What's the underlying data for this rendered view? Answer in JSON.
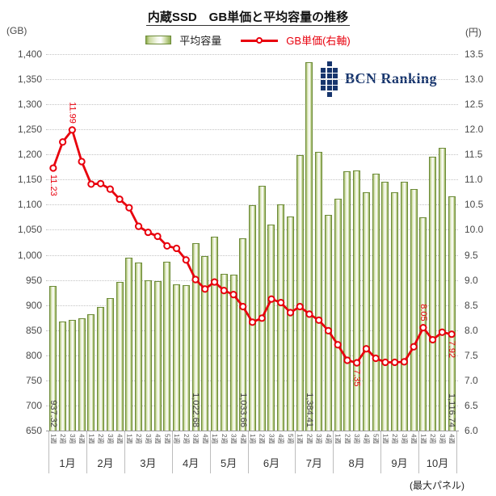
{
  "title": "内蔵SSD　GB単価と平均容量の推移",
  "legend": {
    "bar_label": "平均容量",
    "line_label": "GB単価(右軸)"
  },
  "left_axis": {
    "unit": "(GB)",
    "min": 650,
    "max": 1400,
    "step": 50
  },
  "right_axis": {
    "unit": "(円)",
    "min": 6.0,
    "max": 13.5,
    "step": 0.5
  },
  "footer_note": "(最大パネル)",
  "logo": {
    "text": "BCN Ranking",
    "color": "#17356d",
    "pattern": [
      "010",
      "111",
      "111",
      "111",
      "111",
      "010"
    ]
  },
  "colors": {
    "bar_border": "#6d8b39",
    "bar_mid": "#9bb95a",
    "line": "#e8000d",
    "grid": "#c4c4c4",
    "label": "#3f3f3f"
  },
  "chart_data": {
    "type": "bar+line",
    "months": [
      {
        "label": "1月",
        "weeks": 4
      },
      {
        "label": "2月",
        "weeks": 4
      },
      {
        "label": "3月",
        "weeks": 5
      },
      {
        "label": "4月",
        "weeks": 4
      },
      {
        "label": "5月",
        "weeks": 4
      },
      {
        "label": "6月",
        "weeks": 5
      },
      {
        "label": "7月",
        "weeks": 4
      },
      {
        "label": "8月",
        "weeks": 5
      },
      {
        "label": "9月",
        "weeks": 4
      },
      {
        "label": "10月",
        "weeks": 4
      }
    ],
    "week_suffix": "週",
    "series": [
      {
        "name": "平均容量",
        "type": "bar",
        "axis": "left",
        "unit": "GB",
        "values": [
          937.32,
          868,
          870,
          874,
          881,
          896,
          914,
          946,
          995,
          985,
          949,
          948,
          987,
          942,
          939,
          1022.68,
          998,
          1036,
          963,
          960,
          1033.66,
          1099,
          1138,
          1060,
          1100,
          1076,
          1199,
          1384.41,
          1205,
          1079,
          1112,
          1166,
          1168,
          1124,
          1161,
          1146,
          1124,
          1146,
          1131,
          1075,
          1195,
          1214,
          1116.74
        ]
      },
      {
        "name": "GB単価(右軸)",
        "type": "line",
        "axis": "right",
        "unit": "円",
        "values": [
          11.23,
          11.75,
          11.99,
          11.36,
          10.91,
          10.92,
          10.81,
          10.61,
          10.44,
          10.07,
          9.95,
          9.87,
          9.68,
          9.63,
          9.4,
          9.01,
          8.82,
          8.96,
          8.79,
          8.71,
          8.47,
          8.16,
          8.24,
          8.62,
          8.55,
          8.35,
          8.47,
          8.32,
          8.2,
          7.99,
          7.71,
          7.4,
          7.35,
          7.63,
          7.44,
          7.36,
          7.36,
          7.37,
          7.67,
          8.05,
          7.81,
          7.96,
          7.92
        ]
      }
    ],
    "bar_point_labels": {
      "0": "937.32",
      "15": "1,022.68",
      "20": "1,033.66",
      "27": "1,384.41",
      "42": "1,116.74"
    },
    "line_point_labels": {
      "0": {
        "text": "11.23",
        "pos": "below"
      },
      "2": {
        "text": "11.99",
        "pos": "above"
      },
      "32": {
        "text": "7.35",
        "pos": "below"
      },
      "39": {
        "text": "8.05",
        "pos": "above"
      },
      "42": {
        "text": "7.92",
        "pos": "below"
      }
    },
    "ylim_left": [
      650,
      1400
    ],
    "ylim_right": [
      6.0,
      13.5
    ],
    "grid": "dotted-horizontal",
    "legend_position": "top-center"
  }
}
